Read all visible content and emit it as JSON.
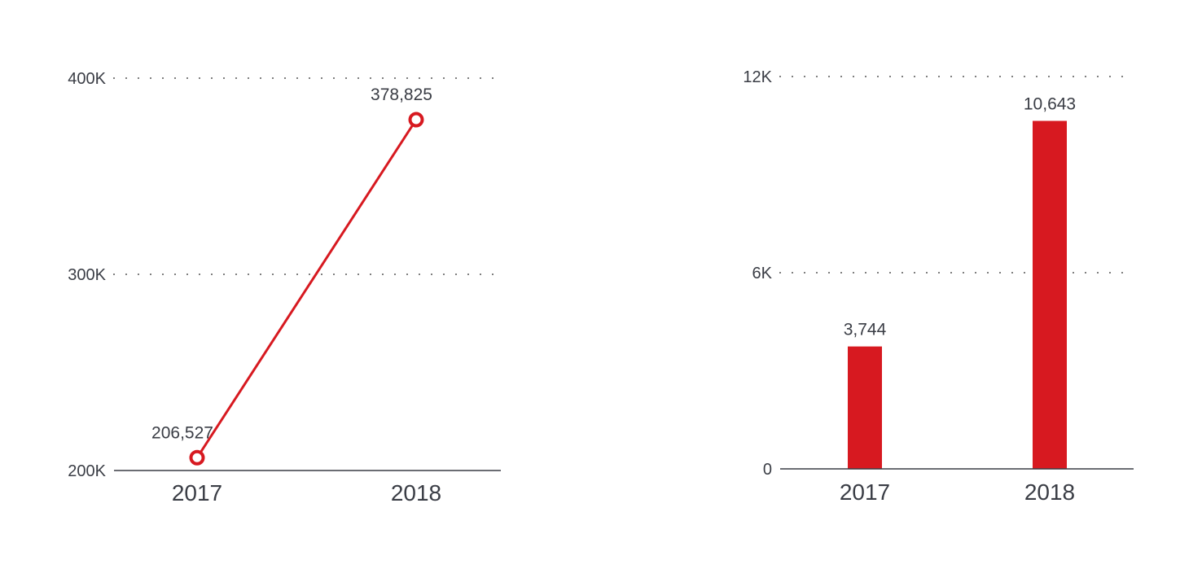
{
  "colors": {
    "accent": "#d71920",
    "text": "#3a3d45",
    "axis": "#3a3d45"
  },
  "chart_data": [
    {
      "type": "line",
      "categories": [
        "2017",
        "2018"
      ],
      "series": [
        {
          "values": [
            206527,
            378825
          ]
        }
      ],
      "data_labels": [
        "206,527",
        "378,825"
      ],
      "y_ticks": [
        200000,
        300000,
        400000
      ],
      "y_tick_labels": [
        "200K",
        "300K",
        "400K"
      ],
      "ylim": [
        200000,
        400000
      ],
      "grid": true,
      "marker": "hollow-circle"
    },
    {
      "type": "bar",
      "categories": [
        "2017",
        "2018"
      ],
      "series": [
        {
          "values": [
            3744,
            10643
          ]
        }
      ],
      "data_labels": [
        "3,744",
        "10,643"
      ],
      "y_ticks": [
        0,
        6000,
        12000
      ],
      "y_tick_labels": [
        "0",
        "6K",
        "12K"
      ],
      "ylim": [
        0,
        12000
      ],
      "grid": true
    }
  ]
}
